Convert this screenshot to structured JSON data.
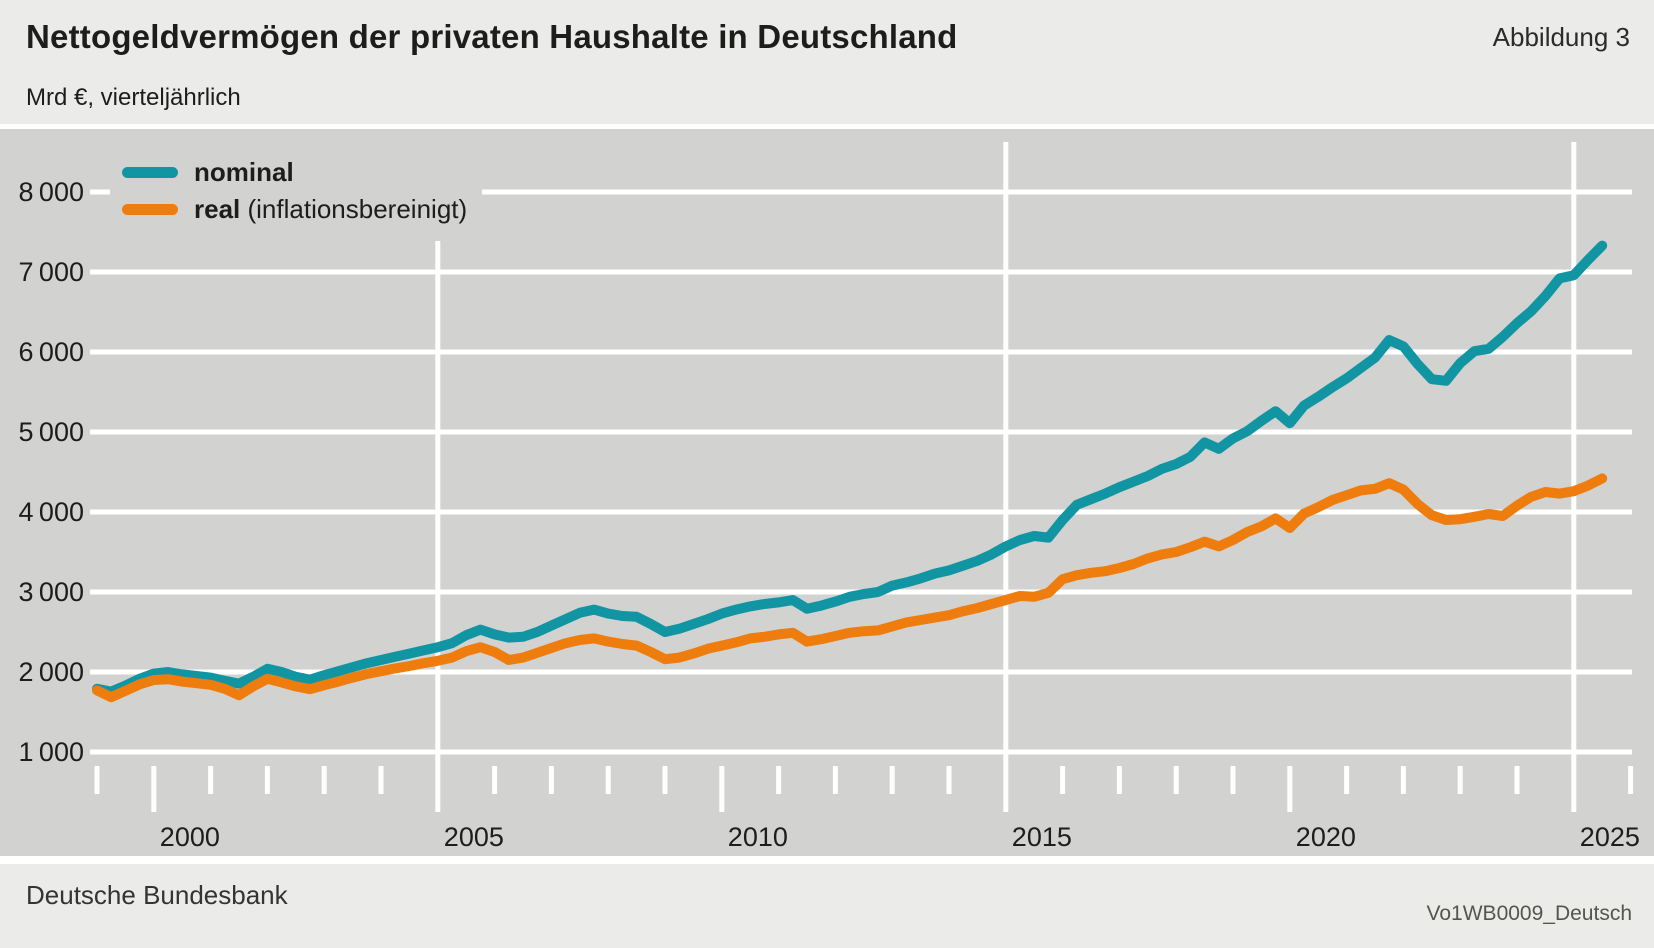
{
  "header": {
    "title": "Nettogeldvermögen der privaten Haushalte in Deutschland",
    "figure_label": "Abbildung 3",
    "subtitle": "Mrd €, vierteljährlich"
  },
  "footer": {
    "left": "Deutsche Bundesbank",
    "right": "Vo1WB0009_Deutsch"
  },
  "legend": {
    "items": [
      {
        "label_bold": "nominal",
        "label_rest": "",
        "color": "#1295a3"
      },
      {
        "label_bold": "real",
        "label_rest": " (inflationsbereinigt)",
        "color": "#ee7d0d"
      }
    ]
  },
  "colors": {
    "plot_background": "#d2d2d0",
    "panel_background": "#ebebe9",
    "gridline": "#ffffff",
    "nominal_line": "#1295a3",
    "real_line": "#ee7d0d",
    "text": "#1d1d1b"
  },
  "chart_data": {
    "type": "line",
    "title": "Nettogeldvermögen der privaten Haushalte in Deutschland",
    "ylabel": "Mrd €",
    "frequency": "vierteljährlich",
    "x_start": "1999 Q1",
    "x_end": "2025 Q3",
    "axis_year_start": 1999,
    "axis_year_end": 2026,
    "ylim": [
      1000,
      8000
    ],
    "grid": true,
    "legend_position": "top-left",
    "y_ticks": [
      {
        "value": 1000,
        "label": "1 000"
      },
      {
        "value": 2000,
        "label": "2 000"
      },
      {
        "value": 3000,
        "label": "3 000"
      },
      {
        "value": 4000,
        "label": "4 000"
      },
      {
        "value": 5000,
        "label": "5 000"
      },
      {
        "value": 6000,
        "label": "6 000"
      },
      {
        "value": 7000,
        "label": "7 000"
      },
      {
        "value": 8000,
        "label": "8 000"
      }
    ],
    "x_labeled_years": [
      2000,
      2005,
      2010,
      2015,
      2020,
      2025
    ],
    "x_gridline_years": [
      2005,
      2015,
      2025
    ],
    "series": [
      {
        "name": "nominal",
        "color": "#1295a3",
        "values": [
          1790,
          1755,
          1830,
          1915,
          1980,
          2000,
          1970,
          1950,
          1930,
          1890,
          1855,
          1940,
          2040,
          2000,
          1940,
          1905,
          1960,
          2010,
          2060,
          2110,
          2150,
          2190,
          2230,
          2270,
          2310,
          2360,
          2460,
          2530,
          2470,
          2430,
          2440,
          2500,
          2580,
          2660,
          2740,
          2780,
          2730,
          2700,
          2690,
          2600,
          2500,
          2540,
          2600,
          2660,
          2730,
          2780,
          2820,
          2850,
          2870,
          2900,
          2790,
          2830,
          2880,
          2940,
          2975,
          3000,
          3080,
          3120,
          3170,
          3230,
          3270,
          3330,
          3390,
          3470,
          3570,
          3650,
          3700,
          3680,
          3900,
          4090,
          4160,
          4230,
          4310,
          4380,
          4450,
          4540,
          4600,
          4690,
          4870,
          4790,
          4920,
          5010,
          5140,
          5260,
          5110,
          5330,
          5440,
          5560,
          5670,
          5800,
          5930,
          6150,
          6070,
          5850,
          5660,
          5640,
          5860,
          6010,
          6040,
          6190,
          6360,
          6510,
          6700,
          6920,
          6960,
          7150,
          7330
        ]
      },
      {
        "name": "real (inflationsbereinigt)",
        "color": "#ee7d0d",
        "values": [
          1770,
          1685,
          1765,
          1845,
          1900,
          1910,
          1880,
          1860,
          1840,
          1790,
          1710,
          1820,
          1915,
          1870,
          1820,
          1785,
          1835,
          1880,
          1930,
          1975,
          2010,
          2045,
          2075,
          2110,
          2140,
          2180,
          2260,
          2310,
          2250,
          2150,
          2180,
          2240,
          2300,
          2360,
          2400,
          2420,
          2380,
          2350,
          2330,
          2250,
          2160,
          2180,
          2230,
          2290,
          2330,
          2370,
          2420,
          2440,
          2470,
          2490,
          2380,
          2410,
          2450,
          2490,
          2510,
          2520,
          2570,
          2620,
          2650,
          2680,
          2710,
          2760,
          2800,
          2850,
          2900,
          2950,
          2940,
          2990,
          3160,
          3210,
          3240,
          3260,
          3300,
          3350,
          3420,
          3470,
          3500,
          3560,
          3630,
          3570,
          3650,
          3750,
          3820,
          3920,
          3800,
          3980,
          4060,
          4150,
          4210,
          4270,
          4290,
          4360,
          4280,
          4100,
          3960,
          3900,
          3910,
          3940,
          3975,
          3950,
          4080,
          4190,
          4250,
          4230,
          4260,
          4330,
          4420
        ]
      }
    ]
  }
}
